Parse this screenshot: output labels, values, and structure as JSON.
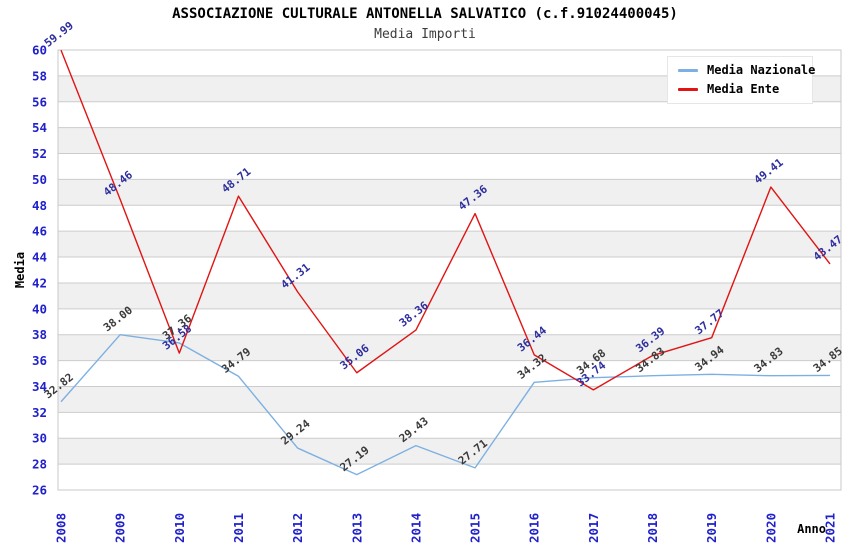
{
  "title": "ASSOCIAZIONE CULTURALE ANTONELLA SALVATICO (c.f.91024400045)",
  "subtitle": "Media Importi",
  "chart_data": {
    "type": "line",
    "title": "ASSOCIAZIONE CULTURALE ANTONELLA SALVATICO (c.f.91024400045)",
    "subtitle": "Media Importi",
    "xlabel": "Anno",
    "ylabel": "Media",
    "categories": [
      "2008",
      "2009",
      "2010",
      "2011",
      "2012",
      "2013",
      "2014",
      "2015",
      "2016",
      "2017",
      "2018",
      "2019",
      "2020",
      "2021"
    ],
    "series": [
      {
        "name": "Media Nazionale",
        "color": "#7db0e2",
        "label_color": "#3a3a3a",
        "values": [
          32.82,
          38.0,
          37.36,
          34.79,
          29.24,
          27.19,
          29.43,
          27.71,
          34.32,
          34.68,
          34.83,
          34.94,
          34.83,
          34.85
        ]
      },
      {
        "name": "Media Ente",
        "color": "#e01414",
        "label_color": "#2e2e9e",
        "values": [
          59.99,
          48.46,
          36.58,
          48.71,
          41.31,
          35.06,
          38.36,
          47.36,
          36.44,
          33.74,
          36.39,
          37.77,
          49.41,
          43.47
        ]
      }
    ],
    "ylim": [
      26,
      60
    ],
    "ytick_step": 2,
    "grid": true,
    "band_fill": "#f0f0f0",
    "gridline_color": "#cccccc",
    "plot_border_color": "#c8c8c8",
    "tick_label_color": "#2121cc",
    "axis_title_color": "#000000",
    "legend_position": "top-right"
  },
  "legend": {
    "items": [
      {
        "label": "Media Nazionale"
      },
      {
        "label": "Media Ente"
      }
    ]
  }
}
